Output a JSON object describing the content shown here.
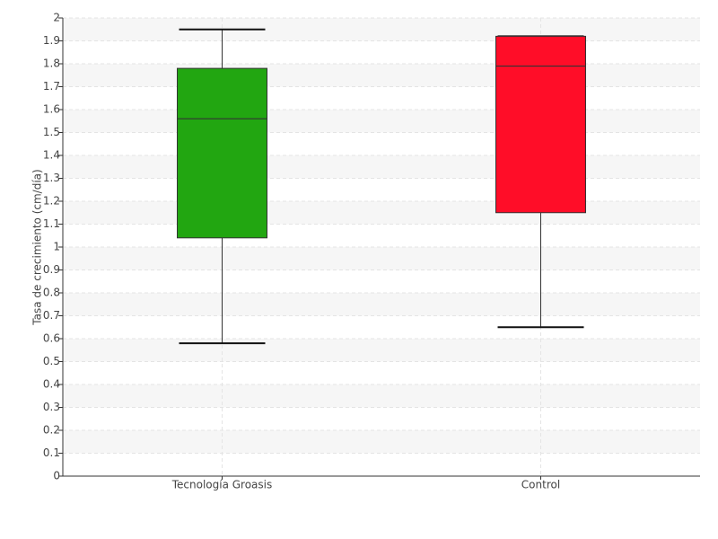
{
  "chart_data": {
    "type": "box",
    "y_label": "Tasa de crecimiento (cm/día)",
    "categories": [
      "Tecnología Groasis",
      "Control"
    ],
    "boxes": [
      {
        "min": 0.58,
        "q1": 1.04,
        "median": 1.56,
        "q3": 1.78,
        "max": 1.95,
        "color": "#22a611"
      },
      {
        "min": 0.65,
        "q1": 1.15,
        "median": 1.79,
        "q3": 1.92,
        "max": 1.92,
        "color": "#ff0d28"
      }
    ],
    "ylim": [
      0,
      2
    ],
    "yticks": [
      0,
      0.1,
      0.2,
      0.3,
      0.4,
      0.5,
      0.6,
      0.7,
      0.8,
      0.9,
      1,
      1.1,
      1.2,
      1.3,
      1.4,
      1.5,
      1.6,
      1.7,
      1.8,
      1.9,
      2
    ],
    "grid": true
  }
}
